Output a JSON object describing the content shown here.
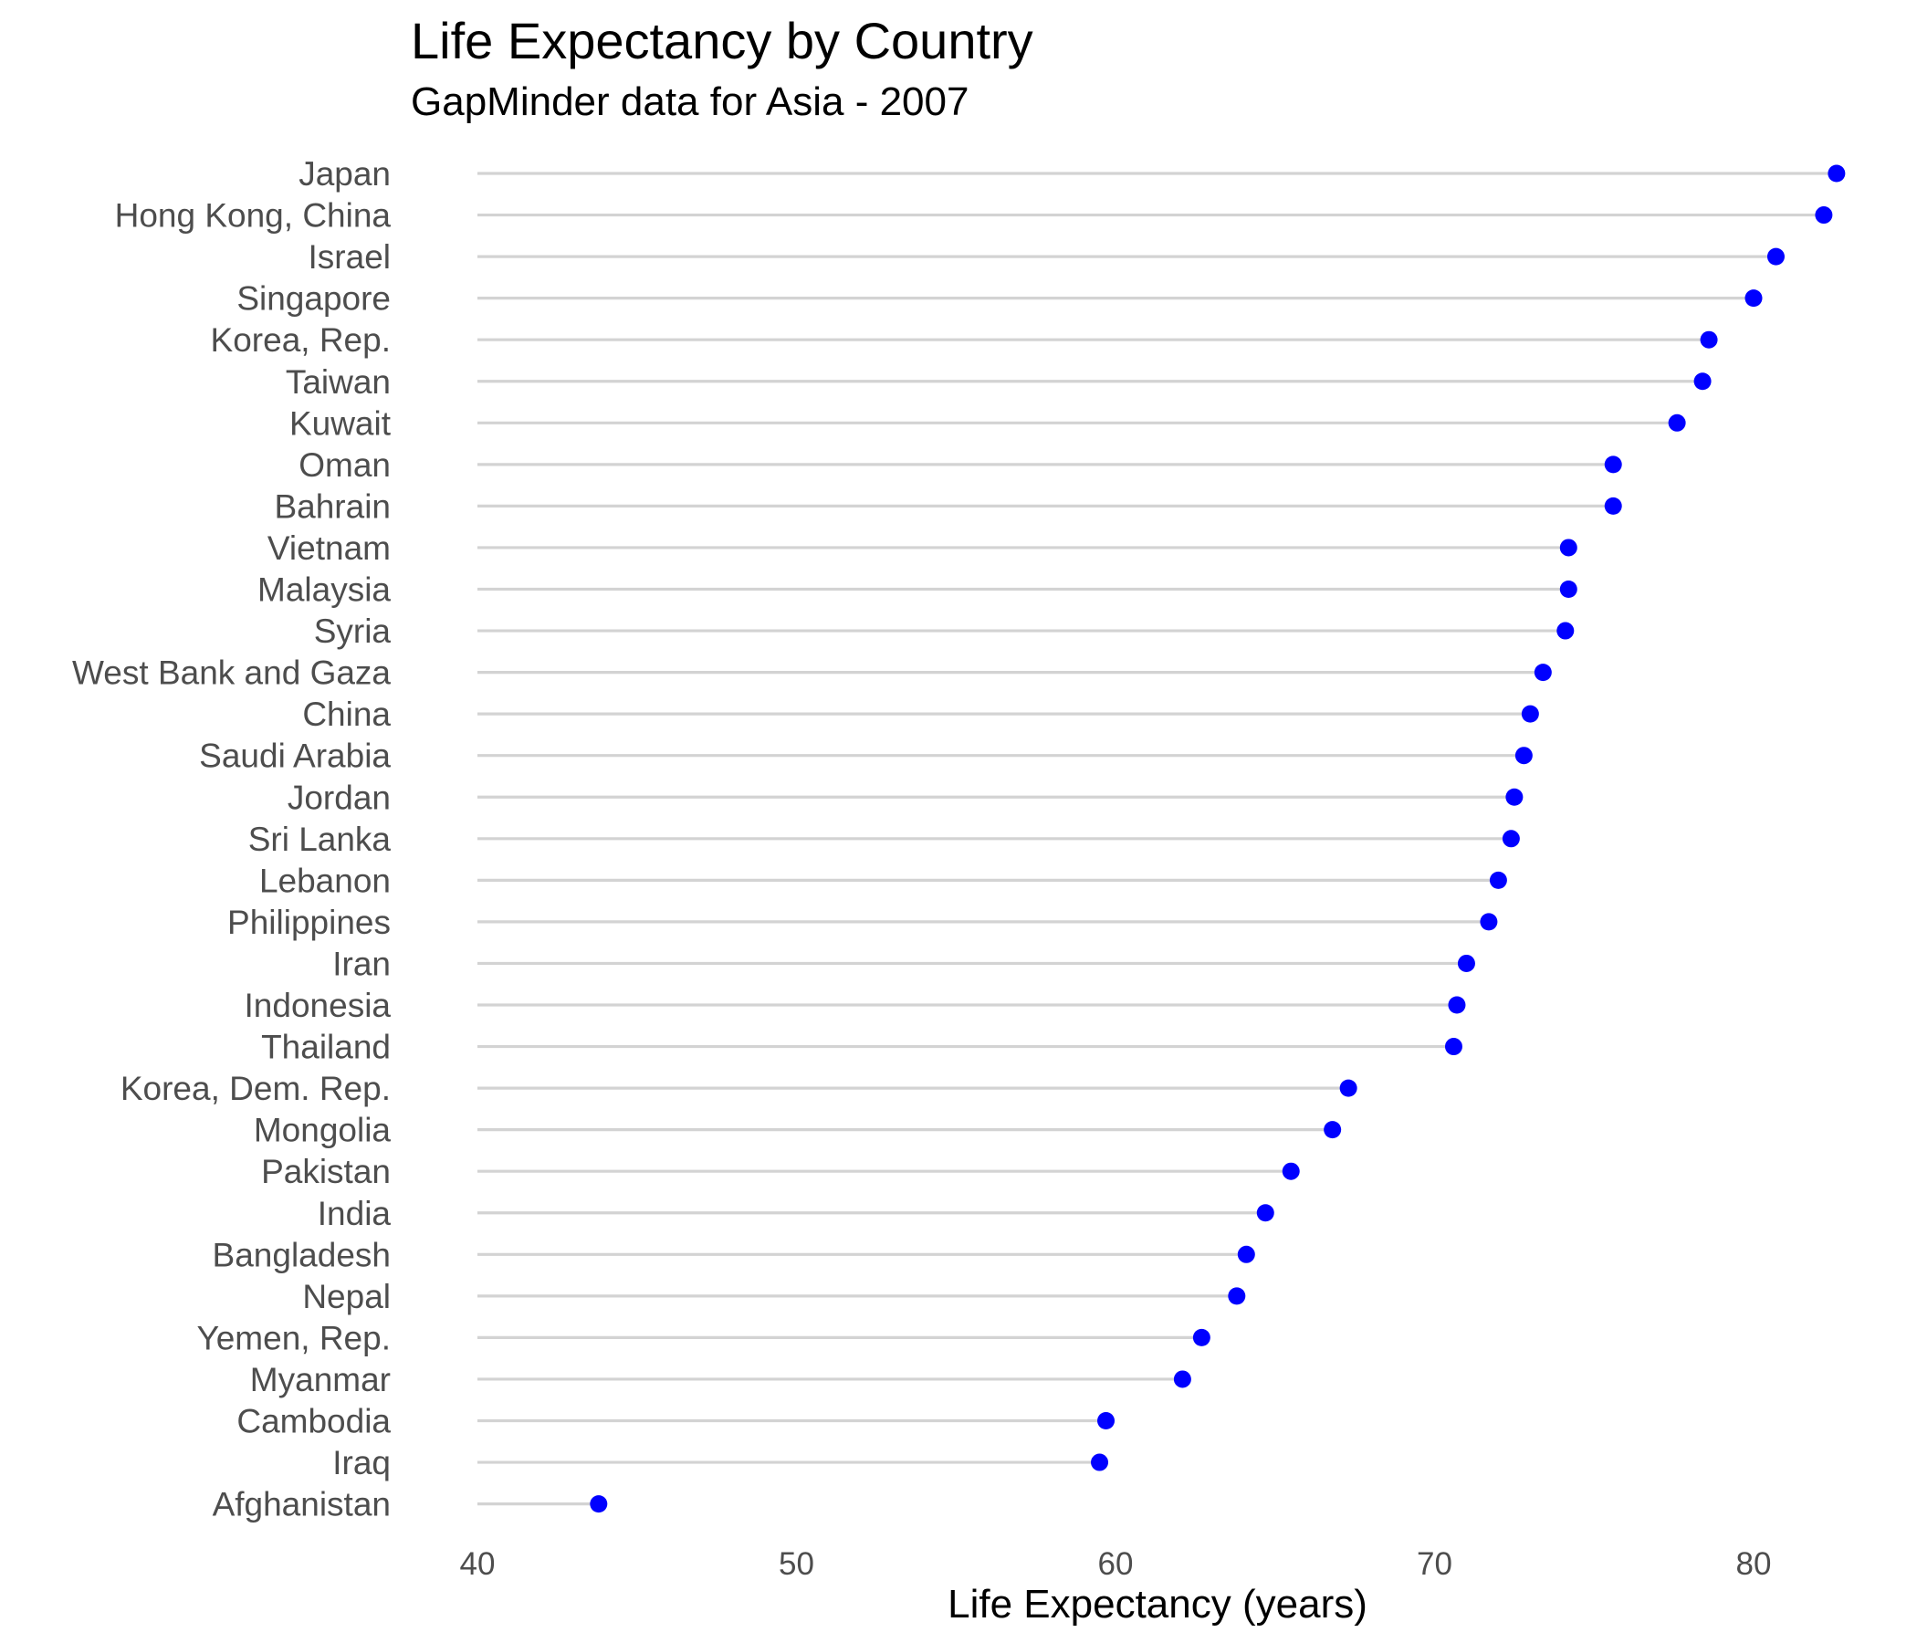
{
  "chart_data": {
    "type": "lollipop",
    "title": "Life Expectancy by Country",
    "subtitle": "GapMinder data for Asia - 2007",
    "xlabel": "Life Expectancy (years)",
    "ylabel": "",
    "xlim": [
      40,
      83
    ],
    "xticks": [
      40,
      50,
      60,
      70,
      80
    ],
    "grid": false,
    "colors": {
      "point": "#0000ff",
      "segment": "#d3d3d3",
      "text": "#4d4d4d"
    },
    "categories": [
      "Japan",
      "Hong Kong, China",
      "Israel",
      "Singapore",
      "Korea, Rep.",
      "Taiwan",
      "Kuwait",
      "Oman",
      "Bahrain",
      "Vietnam",
      "Malaysia",
      "Syria",
      "West Bank and Gaza",
      "China",
      "Saudi Arabia",
      "Jordan",
      "Sri Lanka",
      "Lebanon",
      "Philippines",
      "Iran",
      "Indonesia",
      "Thailand",
      "Korea, Dem. Rep.",
      "Mongolia",
      "Pakistan",
      "India",
      "Bangladesh",
      "Nepal",
      "Yemen, Rep.",
      "Myanmar",
      "Cambodia",
      "Iraq",
      "Afghanistan"
    ],
    "values": [
      82.6,
      82.2,
      80.7,
      80.0,
      78.6,
      78.4,
      77.6,
      75.6,
      75.6,
      74.2,
      74.2,
      74.1,
      73.4,
      73.0,
      72.8,
      72.5,
      72.4,
      72.0,
      71.7,
      71.0,
      70.7,
      70.6,
      67.3,
      66.8,
      65.5,
      64.7,
      64.1,
      63.8,
      62.7,
      62.1,
      59.7,
      59.5,
      43.8
    ]
  }
}
